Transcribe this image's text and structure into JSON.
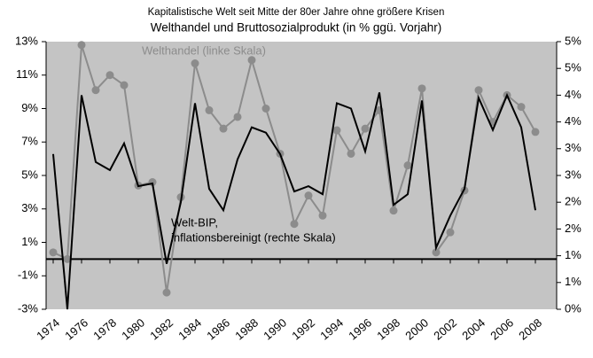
{
  "chart_data": {
    "type": "line",
    "title": "Kapitalistische Welt seit Mitte der 80er Jahre ohne größere Krisen",
    "subtitle": "Welthandel und Bruttosozialprodukt (in % ggü. Vorjahr)",
    "annotations": [
      "Welthandel (linke Skala)",
      "Welt-BIP,",
      "inflationsbereinigt (rechte Skala)"
    ],
    "x": [
      1974,
      1975,
      1976,
      1977,
      1978,
      1979,
      1980,
      1981,
      1982,
      1983,
      1984,
      1985,
      1986,
      1987,
      1988,
      1989,
      1990,
      1991,
      1992,
      1993,
      1994,
      1995,
      1996,
      1997,
      1998,
      1999,
      2000,
      2001,
      2002,
      2003,
      2004,
      2005,
      2006,
      2007,
      2008
    ],
    "xlim": [
      1973.5,
      2009.5
    ],
    "xticks": [
      1974,
      1976,
      1978,
      1980,
      1982,
      1984,
      1986,
      1988,
      1990,
      1992,
      1994,
      1996,
      1998,
      2000,
      2002,
      2004,
      2006,
      2008
    ],
    "ylim": [
      -3,
      13
    ],
    "yticks": [
      {
        "value": -3,
        "label": "-3%"
      },
      {
        "value": -1,
        "label": "-1%"
      },
      {
        "value": 1,
        "label": "1%"
      },
      {
        "value": 3,
        "label": "3%"
      },
      {
        "value": 5,
        "label": "5%"
      },
      {
        "value": 7,
        "label": "7%"
      },
      {
        "value": 9,
        "label": "9%"
      },
      {
        "value": 11,
        "label": "11%"
      },
      {
        "value": 13,
        "label": "13%"
      }
    ],
    "y2lim": [
      0,
      5
    ],
    "y2ticks": [
      {
        "value": 0,
        "label": "0%"
      },
      {
        "value": 0.5,
        "label": "1%"
      },
      {
        "value": 1,
        "label": "1%"
      },
      {
        "value": 1.5,
        "label": "2%"
      },
      {
        "value": 2,
        "label": "2%"
      },
      {
        "value": 2.5,
        "label": "3%"
      },
      {
        "value": 3,
        "label": "3%"
      },
      {
        "value": 3.5,
        "label": "4%"
      },
      {
        "value": 4,
        "label": "4%"
      },
      {
        "value": 4.5,
        "label": "5%"
      },
      {
        "value": 5,
        "label": "5%"
      }
    ],
    "series": [
      {
        "color": "#8c8c8c",
        "markers": true,
        "values": [
          0.4,
          0,
          12.8,
          10.1,
          11.0,
          10.4,
          4.4,
          4.6,
          -2.0,
          3.7,
          11.7,
          8.9,
          7.8,
          8.5,
          11.9,
          9.0,
          6.3,
          2.1,
          3.8,
          2.6,
          7.7,
          6.3,
          7.8,
          8.9,
          2.9,
          5.6,
          10.2,
          0.4,
          1.6,
          4.1,
          10.1,
          8.2,
          9.8,
          9.1,
          7.6
        ]
      },
      {
        "color": "#000000",
        "axis": "y2",
        "markers": false,
        "values": [
          2.9,
          0,
          4.0,
          2.75,
          2.6,
          3.1,
          2.3,
          2.35,
          0.85,
          2.0,
          3.85,
          2.25,
          1.85,
          2.8,
          3.4,
          3.3,
          2.9,
          2.2,
          2.3,
          2.15,
          3.85,
          3.75,
          2.95,
          4.05,
          1.95,
          2.15,
          3.9,
          1.15,
          1.75,
          2.25,
          3.95,
          3.35,
          4.0,
          3.4,
          1.85
        ]
      }
    ]
  }
}
